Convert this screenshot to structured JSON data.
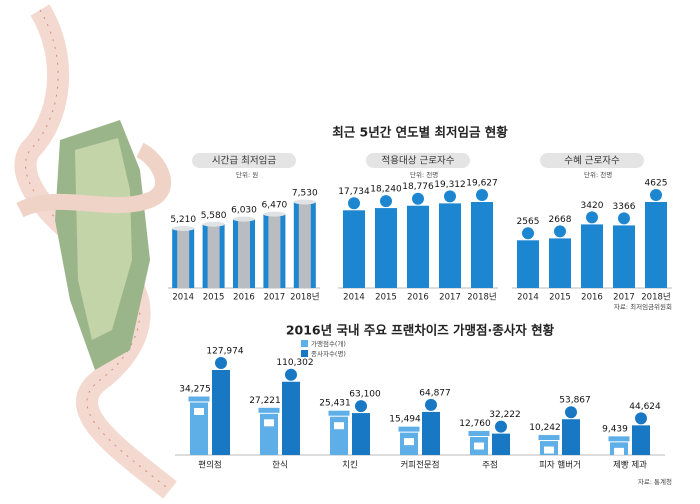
{
  "heading": "최근 5년간 연도별 최저임금 현황",
  "source": "자료: 최저임금위원회",
  "chart_data": [
    {
      "type": "bar",
      "title": "시간급 최저임금",
      "unit": "단위: 원",
      "categories": [
        "2014",
        "2015",
        "2016",
        "2017",
        "2018년"
      ],
      "values": [
        5210,
        5580,
        6030,
        6470,
        7530
      ],
      "value_labels": [
        "5,210",
        "5,580",
        "6,030",
        "6,470",
        "7,530"
      ],
      "color": "#1c86d1"
    },
    {
      "type": "bar",
      "title": "적용대상 근로자수",
      "unit": "단위: 천명",
      "categories": [
        "2014",
        "2015",
        "2016",
        "2017",
        "2018년"
      ],
      "values": [
        17734,
        18240,
        18776,
        19312,
        19627
      ],
      "value_labels": [
        "17,734",
        "18,240",
        "18,776",
        "19,312",
        "19,627"
      ],
      "color": "#1c86d1"
    },
    {
      "type": "bar",
      "title": "수혜 근로자수",
      "unit": "단위: 천명",
      "categories": [
        "2014",
        "2015",
        "2016",
        "2017",
        "2018년"
      ],
      "values": [
        2565,
        2668,
        3420,
        3366,
        4625
      ],
      "color": "#1c86d1"
    },
    {
      "type": "grouped_bar",
      "title": "2016년 국내 주요 프랜차이즈 가맹점·종사자 현황",
      "source": "자료: 통계청",
      "categories": [
        "편의점",
        "한식",
        "치킨",
        "커피전문점",
        "주점",
        "피자 햄버거",
        "제빵 제과"
      ],
      "series": [
        {
          "name": "가맹점수(개)",
          "color": "#5eaee8",
          "values": [
            34275,
            27221,
            25431,
            15494,
            12760,
            10242,
            9439
          ],
          "value_labels": [
            "34,275",
            "27,221",
            "25,431",
            "15,494",
            "12,760",
            "10,242",
            "9,439"
          ]
        },
        {
          "name": "종사자수(명)",
          "color": "#1878c4",
          "values": [
            127974,
            110302,
            63100,
            64877,
            32222,
            53867,
            44624
          ],
          "value_labels": [
            "127,974",
            "110,302",
            "63,100",
            "64,877",
            "32,222",
            "53,867",
            "44,624"
          ]
        }
      ]
    }
  ]
}
